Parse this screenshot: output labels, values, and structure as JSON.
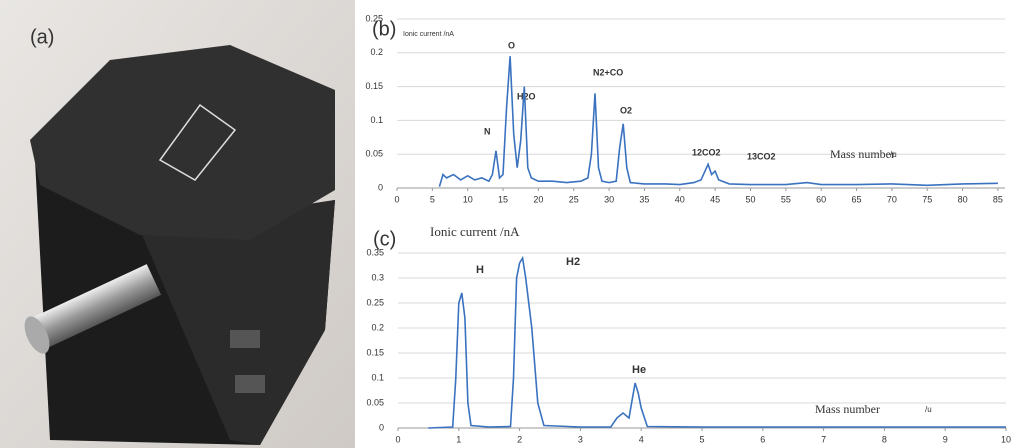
{
  "photo_label": "(a)",
  "chart_data": [
    {
      "type": "line",
      "label": "(b)",
      "y_label": "Ionic current /nA",
      "x_label": "Mass number",
      "x_unit": "/u",
      "xlim": [
        0,
        86
      ],
      "xticks": [
        0,
        5,
        10,
        15,
        20,
        25,
        30,
        35,
        40,
        45,
        50,
        55,
        60,
        65,
        70,
        75,
        80,
        85
      ],
      "ylim": [
        0,
        0.25
      ],
      "yticks": [
        0,
        0.05,
        0.1,
        0.15,
        0.2,
        0.25
      ],
      "grid": true,
      "annotations": [
        "N",
        "O",
        "H2O",
        "N2+CO",
        "O2",
        "12CO2",
        "13CO2"
      ],
      "x": [
        6,
        6.5,
        7,
        8,
        9,
        10,
        11,
        12,
        13,
        13.5,
        14,
        14.5,
        15,
        15.5,
        16,
        16.5,
        17,
        17.5,
        18,
        18.5,
        19,
        20,
        22,
        24,
        26,
        27,
        27.5,
        28,
        28.5,
        29,
        30,
        31,
        31.5,
        32,
        32.5,
        33,
        35,
        38,
        40,
        42,
        43,
        44,
        44.5,
        45,
        45.5,
        47,
        50,
        55,
        58,
        60,
        65,
        70,
        75,
        80,
        85
      ],
      "series": [
        {
          "color": "#3a72c0",
          "values": [
            0.002,
            0.02,
            0.015,
            0.02,
            0.012,
            0.018,
            0.012,
            0.015,
            0.01,
            0.02,
            0.055,
            0.015,
            0.02,
            0.12,
            0.195,
            0.08,
            0.03,
            0.07,
            0.15,
            0.03,
            0.015,
            0.01,
            0.01,
            0.008,
            0.01,
            0.015,
            0.05,
            0.14,
            0.03,
            0.01,
            0.008,
            0.01,
            0.06,
            0.095,
            0.03,
            0.008,
            0.006,
            0.006,
            0.005,
            0.008,
            0.012,
            0.035,
            0.02,
            0.025,
            0.012,
            0.006,
            0.005,
            0.005,
            0.008,
            0.005,
            0.005,
            0.006,
            0.004,
            0.006,
            0.007
          ]
        }
      ]
    },
    {
      "type": "line",
      "label": "(c)",
      "y_label": "Ionic current /nA",
      "x_label": "Mass number",
      "x_unit": "/u",
      "xlim": [
        0,
        10
      ],
      "xticks": [
        0,
        1,
        2,
        3,
        4,
        5,
        6,
        7,
        8,
        9,
        10
      ],
      "ylim": [
        0,
        0.35
      ],
      "yticks": [
        0,
        0.05,
        0.1,
        0.15,
        0.2,
        0.25,
        0.3,
        0.35
      ],
      "grid": true,
      "annotations": [
        "H",
        "H2",
        "He"
      ],
      "x": [
        0.5,
        0.9,
        0.95,
        1.0,
        1.05,
        1.1,
        1.15,
        1.2,
        1.5,
        1.85,
        1.9,
        1.95,
        2.0,
        2.05,
        2.1,
        2.2,
        2.3,
        2.4,
        3,
        3.5,
        3.6,
        3.7,
        3.8,
        3.9,
        3.95,
        4.0,
        4.1,
        5,
        6,
        7,
        8,
        9,
        10
      ],
      "series": [
        {
          "color": "#3a72c0",
          "values": [
            0,
            0.002,
            0.1,
            0.25,
            0.27,
            0.22,
            0.05,
            0.005,
            0.002,
            0.003,
            0.1,
            0.3,
            0.33,
            0.34,
            0.3,
            0.2,
            0.05,
            0.005,
            0.002,
            0.002,
            0.02,
            0.03,
            0.02,
            0.09,
            0.07,
            0.04,
            0.003,
            0.002,
            0.002,
            0.002,
            0.002,
            0.002,
            0.002
          ]
        }
      ]
    }
  ]
}
